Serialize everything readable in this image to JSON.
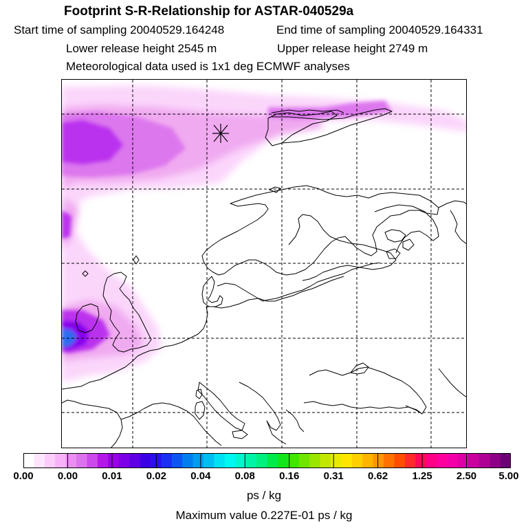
{
  "header": {
    "title": "Footprint S-R-Relationship for ASTAR-040529a",
    "start_time": "Start time of sampling 20040529.164248",
    "end_time": "End time of sampling 20040529.164331",
    "lower_height": "Lower release height 2545 m",
    "upper_height": "Upper release height 2749 m",
    "met_data": "Meteorological data used is 1x1 deg ECMWF analyses"
  },
  "colorbar": {
    "labels": [
      "0.00",
      "0.00",
      "0.01",
      "0.02",
      "0.04",
      "0.08",
      "0.16",
      "0.31",
      "0.62",
      "1.25",
      "2.50",
      "5.00"
    ],
    "colors": [
      "#ffffff",
      "#fde6fd",
      "#fbcdfb",
      "#f8b2f8",
      "#e98fef",
      "#dd72ee",
      "#cc4ae9",
      "#b418e8",
      "#9a00e6",
      "#7d00e6",
      "#6000e6",
      "#3c00e6",
      "#2a10f0",
      "#1a30f4",
      "#0d55f2",
      "#007ef0",
      "#009cf0",
      "#00bef2",
      "#00e2f4",
      "#00f8f2",
      "#00f6cf",
      "#00f4a8",
      "#00f080",
      "#00ea4c",
      "#12e61a",
      "#3ee600",
      "#6ee600",
      "#9ae600",
      "#c2e600",
      "#e8ea00",
      "#ffe600",
      "#ffcf00",
      "#ffb400",
      "#ff9600",
      "#ff7200",
      "#ff4e00",
      "#ff2a2a",
      "#ff0a56",
      "#ff0086",
      "#ff009e",
      "#f400a8",
      "#e000a8",
      "#c8009e",
      "#ae0094",
      "#8e0086",
      "#6c0074"
    ],
    "unit": "ps / kg",
    "max_value": "Maximum value  0.227E-01 ps / kg"
  },
  "map": {
    "receptor_icon": "asterisk-receptor-icon",
    "gridlines": "dashed",
    "coastline_color": "#000000",
    "plume_colors": [
      "#fbd6fb",
      "#f0aaf0",
      "#dd77ee",
      "#bb33ee",
      "#8800ee",
      "#4422ee",
      "#2a6cf0",
      "#1e9cf0"
    ]
  }
}
